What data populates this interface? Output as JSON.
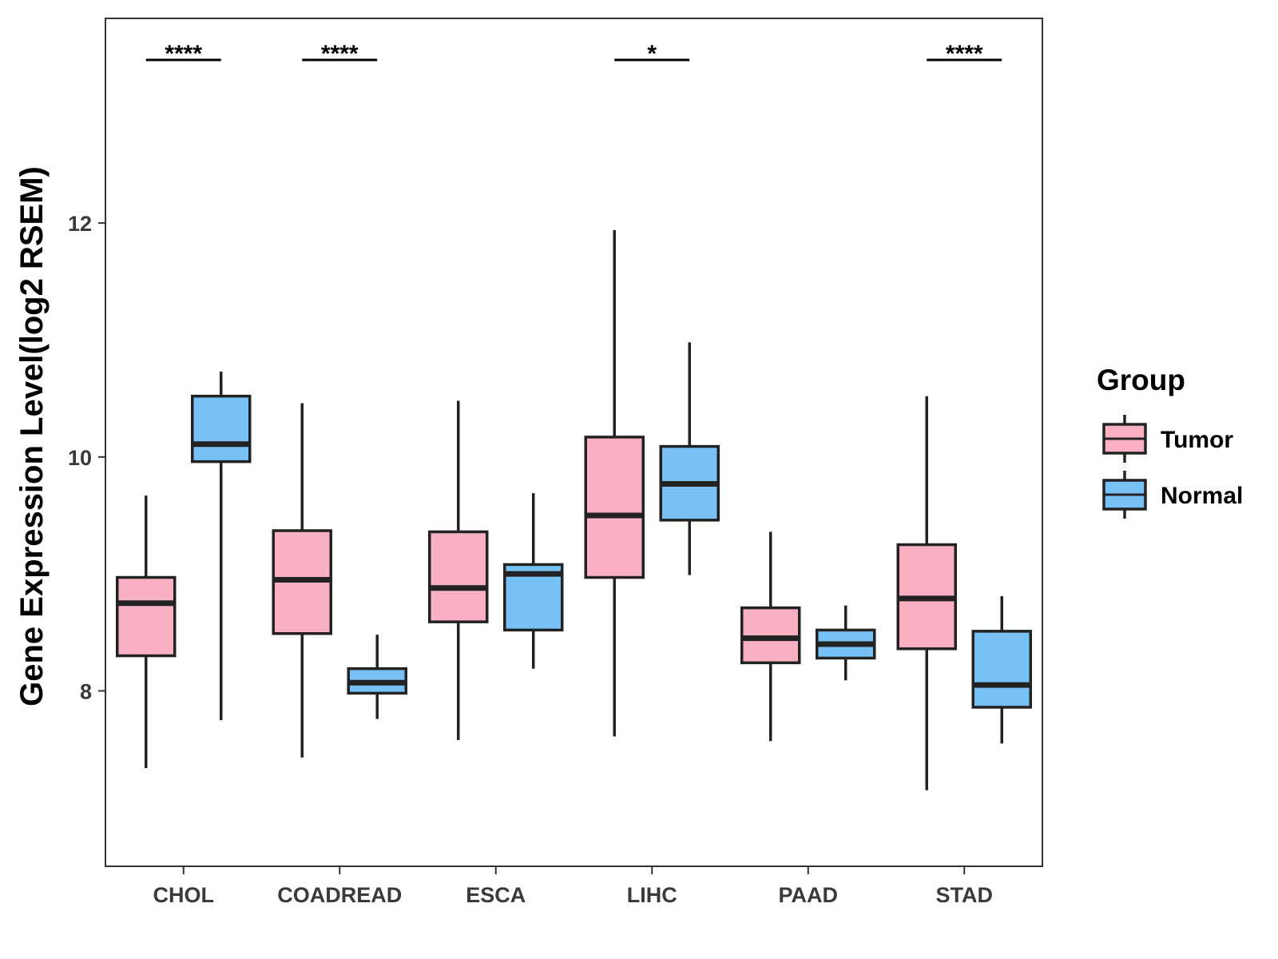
{
  "chart_data": {
    "type": "boxplot",
    "title": "",
    "xlabel": "",
    "ylabel": "Gene Expression Level(log2 RSEM)",
    "ylim": [
      6.5,
      13.75
    ],
    "yticks": [
      8,
      10,
      12
    ],
    "grid": false,
    "categories": [
      "CHOL",
      "COADREAD",
      "ESCA",
      "LIHC",
      "PAAD",
      "STAD"
    ],
    "legend": {
      "title": "Group",
      "placement": "right",
      "entries": [
        {
          "name": "Tumor",
          "color": "#F9B0C3"
        },
        {
          "name": "Normal",
          "color": "#78C1F7"
        }
      ]
    },
    "series": [
      {
        "name": "Tumor",
        "color": "#F9B0C3",
        "boxes": [
          {
            "whisker_low": 7.34,
            "q1": 8.3,
            "median": 8.75,
            "q3": 8.97,
            "whisker_high": 9.67
          },
          {
            "whisker_low": 7.43,
            "q1": 8.49,
            "median": 8.95,
            "q3": 9.37,
            "whisker_high": 10.46
          },
          {
            "whisker_low": 7.58,
            "q1": 8.59,
            "median": 8.88,
            "q3": 9.36,
            "whisker_high": 10.48
          },
          {
            "whisker_low": 7.61,
            "q1": 8.97,
            "median": 9.5,
            "q3": 10.17,
            "whisker_high": 11.94
          },
          {
            "whisker_low": 7.57,
            "q1": 8.24,
            "median": 8.45,
            "q3": 8.71,
            "whisker_high": 9.36
          },
          {
            "whisker_low": 7.15,
            "q1": 8.36,
            "median": 8.79,
            "q3": 9.25,
            "whisker_high": 10.52
          }
        ]
      },
      {
        "name": "Normal",
        "color": "#78C1F7",
        "boxes": [
          {
            "whisker_low": 7.75,
            "q1": 9.96,
            "median": 10.11,
            "q3": 10.52,
            "whisker_high": 10.73
          },
          {
            "whisker_low": 7.76,
            "q1": 7.98,
            "median": 8.07,
            "q3": 8.19,
            "whisker_high": 8.48
          },
          {
            "whisker_low": 8.19,
            "q1": 8.52,
            "median": 9.0,
            "q3": 9.08,
            "whisker_high": 9.69
          },
          {
            "whisker_low": 8.99,
            "q1": 9.46,
            "median": 9.77,
            "q3": 10.09,
            "whisker_high": 10.98
          },
          {
            "whisker_low": 8.09,
            "q1": 8.28,
            "median": 8.4,
            "q3": 8.52,
            "whisker_high": 8.73
          },
          {
            "whisker_low": 7.55,
            "q1": 7.86,
            "median": 8.05,
            "q3": 8.51,
            "whisker_high": 8.81
          }
        ]
      }
    ],
    "annotations": [
      {
        "category": "CHOL",
        "label": "****"
      },
      {
        "category": "COADREAD",
        "label": "****"
      },
      {
        "category": "LIHC",
        "label": "*"
      },
      {
        "category": "STAD",
        "label": "****"
      }
    ]
  }
}
